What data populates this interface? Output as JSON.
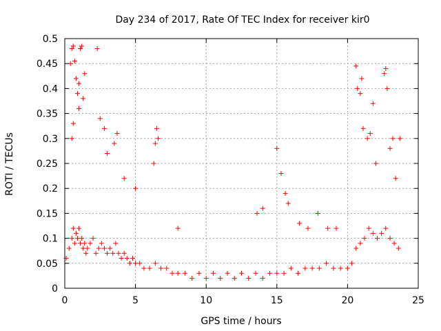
{
  "chart_data": {
    "type": "scatter",
    "title": "Day 234 of 2017, Rate Of TEC Index for receiver kir0",
    "xlabel": "GPS time / hours",
    "ylabel": "ROTI / TECUs",
    "xlim": [
      0,
      25
    ],
    "ylim": [
      0,
      0.5
    ],
    "x_ticks": [
      "0",
      "5",
      "10",
      "15",
      "20",
      "25"
    ],
    "y_ticks": [
      "0",
      "0.05",
      "0.1",
      "0.15",
      "0.2",
      "0.25",
      "0.3",
      "0.35",
      "0.4",
      "0.45",
      "0.5"
    ],
    "grid": true,
    "marker": "+",
    "marker_color": "#ff0000",
    "series": [
      {
        "x": [
          0.1,
          0.3,
          0.5,
          0.6,
          0.7,
          0.8,
          0.9,
          1.0,
          1.1,
          1.2,
          1.3,
          1.4,
          1.5,
          1.6,
          1.8,
          2.0,
          2.2,
          2.4,
          2.6,
          2.8,
          3.0,
          3.2,
          3.4,
          3.6,
          3.8,
          4.0,
          4.2,
          4.4,
          4.6,
          4.8,
          5.0,
          5.3,
          5.6,
          6.0,
          6.4,
          6.8,
          7.2,
          7.6,
          8.0,
          8.5,
          9.0,
          9.5,
          10.0,
          10.5,
          11.0,
          11.5,
          12.0,
          12.5,
          13.0,
          13.5,
          14.0,
          14.5,
          15.0,
          15.5,
          16.0,
          16.5,
          17.0,
          17.5,
          18.0,
          18.5,
          19.0,
          19.5,
          20.0,
          20.3,
          20.6,
          20.9,
          21.2,
          21.5,
          21.8,
          22.1,
          22.4,
          22.7,
          23.0,
          23.3,
          23.6,
          0.4,
          0.5,
          0.6,
          0.7,
          0.8,
          0.9,
          1.0,
          1.1,
          1.2,
          1.4,
          1.3,
          1.0,
          0.6,
          0.5,
          2.3,
          2.5,
          2.8,
          3.0,
          3.5,
          3.7,
          4.2,
          5.0,
          6.5,
          6.6,
          6.4,
          6.3,
          8.0,
          13.6,
          14.0,
          15.0,
          15.3,
          15.6,
          15.8,
          16.6,
          17.2,
          17.9,
          18.6,
          19.2,
          20.6,
          20.7,
          20.9,
          21.0,
          21.1,
          21.4,
          21.6,
          21.8,
          22.0,
          22.6,
          22.7,
          22.8,
          23.0,
          23.2,
          23.4,
          23.7
        ],
        "y": [
          0.06,
          0.08,
          0.1,
          0.12,
          0.09,
          0.11,
          0.1,
          0.12,
          0.09,
          0.1,
          0.08,
          0.09,
          0.07,
          0.08,
          0.09,
          0.1,
          0.07,
          0.08,
          0.09,
          0.08,
          0.07,
          0.08,
          0.07,
          0.09,
          0.07,
          0.06,
          0.07,
          0.06,
          0.05,
          0.06,
          0.05,
          0.05,
          0.04,
          0.04,
          0.05,
          0.04,
          0.04,
          0.03,
          0.03,
          0.03,
          0.02,
          0.03,
          0.02,
          0.03,
          0.02,
          0.03,
          0.02,
          0.03,
          0.02,
          0.03,
          0.02,
          0.03,
          0.03,
          0.03,
          0.04,
          0.03,
          0.04,
          0.04,
          0.04,
          0.05,
          0.04,
          0.04,
          0.04,
          0.05,
          0.08,
          0.09,
          0.1,
          0.12,
          0.11,
          0.1,
          0.11,
          0.12,
          0.1,
          0.09,
          0.08,
          0.45,
          0.48,
          0.485,
          0.455,
          0.42,
          0.39,
          0.41,
          0.48,
          0.485,
          0.43,
          0.38,
          0.36,
          0.33,
          0.3,
          0.48,
          0.34,
          0.32,
          0.27,
          0.29,
          0.31,
          0.22,
          0.2,
          0.32,
          0.3,
          0.29,
          0.25,
          0.12,
          0.15,
          0.16,
          0.28,
          0.23,
          0.19,
          0.17,
          0.13,
          0.12,
          0.15,
          0.12,
          0.12,
          0.445,
          0.4,
          0.39,
          0.42,
          0.32,
          0.3,
          0.31,
          0.37,
          0.25,
          0.43,
          0.44,
          0.4,
          0.28,
          0.3,
          0.22,
          0.3
        ]
      }
    ]
  }
}
